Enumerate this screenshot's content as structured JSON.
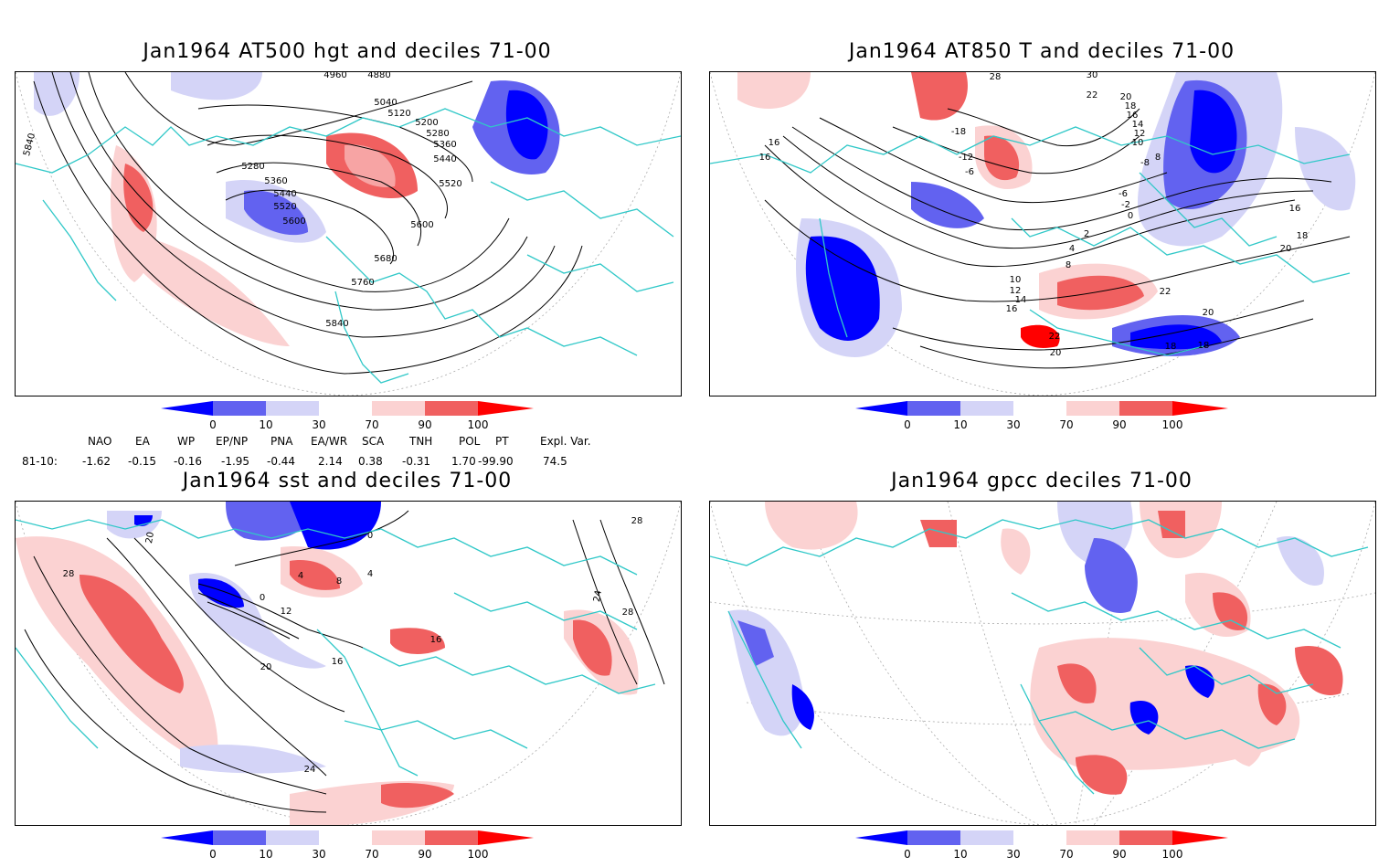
{
  "panels": [
    {
      "title": "Jan1964 AT500 hgt and deciles 71-00",
      "contour_labels": [
        "4960",
        "4880",
        "5040",
        "5120",
        "5200",
        "5280",
        "5360",
        "5440",
        "5520",
        "5280",
        "5360",
        "5440",
        "5520",
        "5600",
        "5600",
        "5680",
        "5760",
        "5840",
        "5840"
      ]
    },
    {
      "title": "Jan1964 AT850 T and deciles 71-00",
      "contour_labels": [
        "28",
        "30",
        "22",
        "20",
        "18",
        "16",
        "14",
        "12",
        "10",
        "8",
        "16",
        "16",
        "-18",
        "-12",
        "-6",
        "0",
        "-6",
        "-2",
        "-8",
        "2",
        "4",
        "8",
        "10",
        "12",
        "14",
        "16",
        "16",
        "18",
        "20",
        "22",
        "22",
        "20",
        "20",
        "18",
        "18"
      ]
    },
    {
      "title": "Jan1964 sst and deciles 71-00",
      "contour_labels": [
        "20",
        "28",
        "0",
        "4",
        "8",
        "4",
        "0",
        "12",
        "16",
        "16",
        "20",
        "24",
        "24",
        "28",
        "28"
      ]
    },
    {
      "title": "Jan1964 gpcc deciles 71-00",
      "contour_labels": []
    }
  ],
  "colorbar": {
    "labels": [
      "0",
      "10",
      "30",
      "70",
      "90",
      "100"
    ],
    "colors": [
      "#0000ff",
      "#6262f0",
      "#d4d4f7",
      "#ffffff",
      "#fbd2d2",
      "#f06060",
      "#ff0000"
    ]
  },
  "indices": {
    "headers": [
      "NAO",
      "EA",
      "WP",
      "EP/NP",
      "PNA",
      "EA/WR",
      "SCA",
      "TNH",
      "POL",
      "PT",
      "Expl. Var."
    ],
    "row_label": "81-10:",
    "values": [
      "-1.62",
      "-0.15",
      "-0.16",
      "-1.95",
      "-0.44",
      "2.14",
      "0.38",
      "-0.31",
      "1.70",
      "-99.90",
      "74.5"
    ]
  }
}
